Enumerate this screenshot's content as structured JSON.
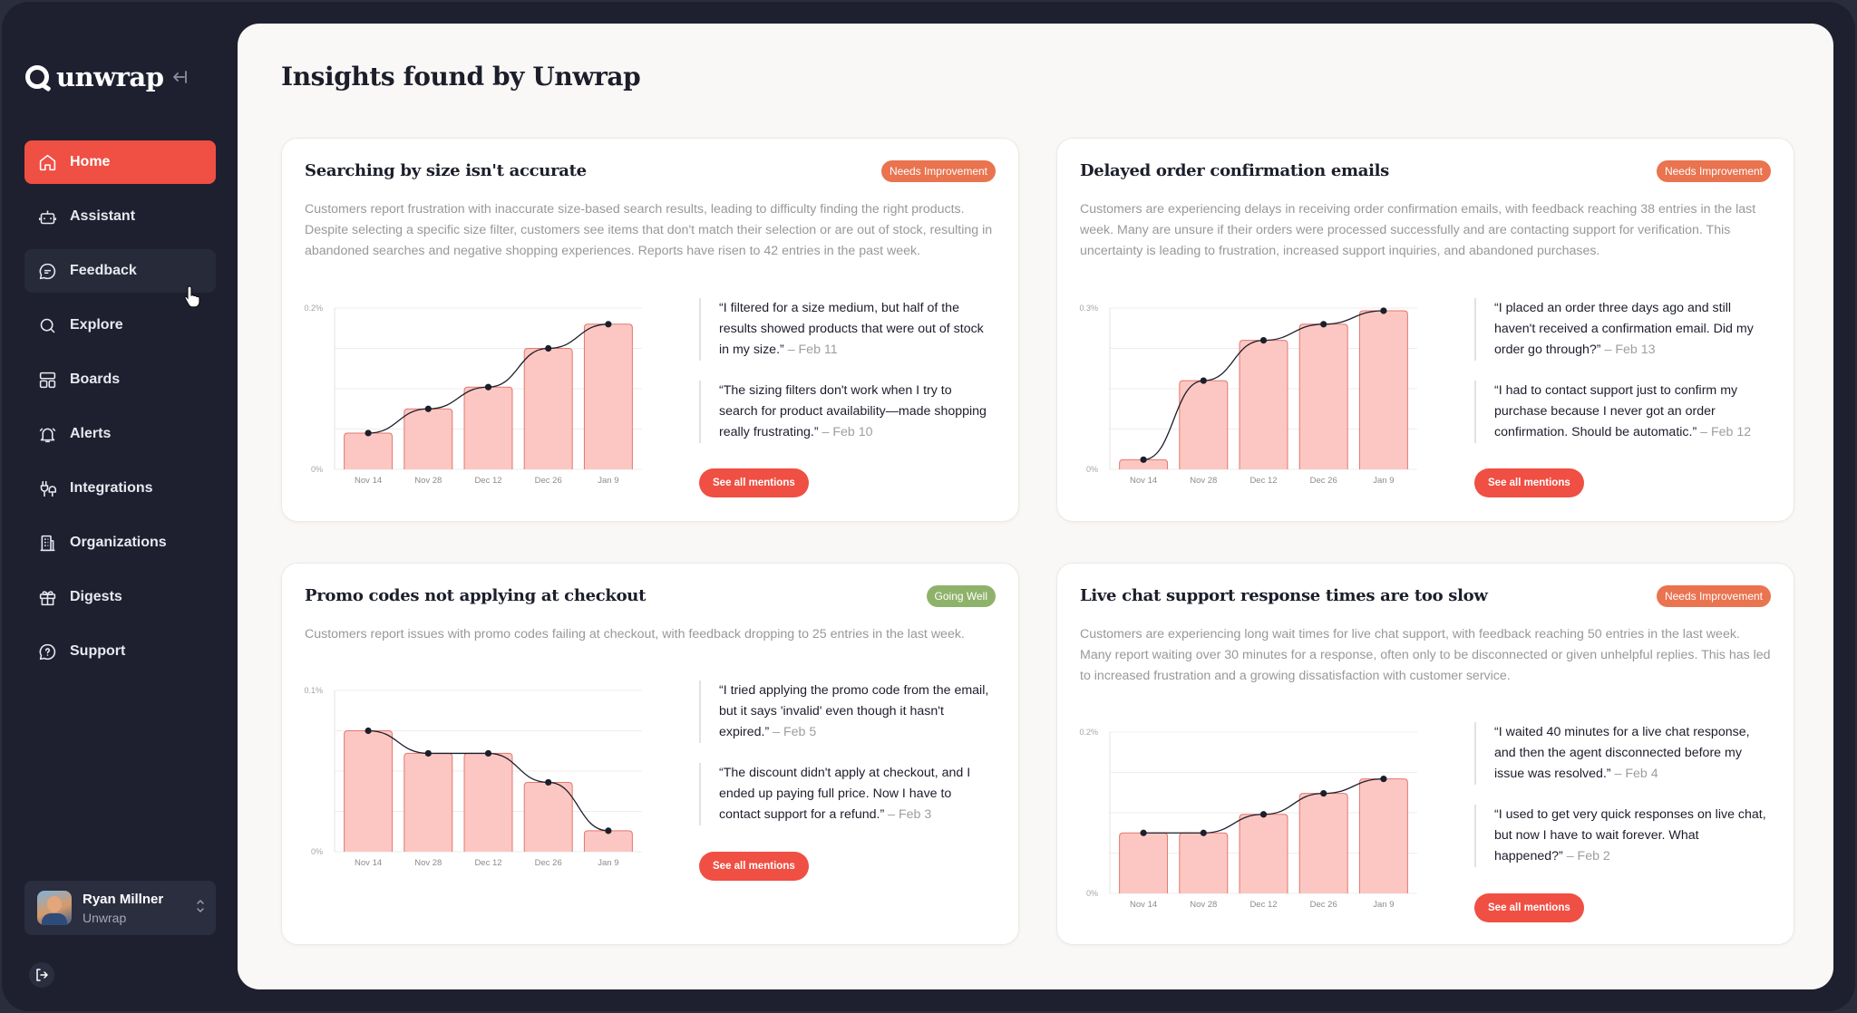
{
  "app": {
    "name": "unwrap"
  },
  "sidebar": {
    "items": [
      {
        "label": "Home",
        "icon": "home-icon",
        "active": true
      },
      {
        "label": "Assistant",
        "icon": "robot-icon"
      },
      {
        "label": "Feedback",
        "icon": "chat-bubble-icon",
        "hover": true
      },
      {
        "label": "Explore",
        "icon": "search-icon"
      },
      {
        "label": "Boards",
        "icon": "boards-icon"
      },
      {
        "label": "Alerts",
        "icon": "bell-icon"
      },
      {
        "label": "Integrations",
        "icon": "integrations-icon"
      },
      {
        "label": "Organizations",
        "icon": "building-icon"
      },
      {
        "label": "Digests",
        "icon": "gift-icon"
      },
      {
        "label": "Support",
        "icon": "support-icon"
      }
    ],
    "user": {
      "name": "Ryan Millner",
      "org": "Unwrap"
    }
  },
  "main": {
    "title": "Insights found by Unwrap"
  },
  "colors": {
    "accent": "#f04f43",
    "needs_improvement": "#e9744f",
    "going_well": "#8fb26b",
    "bar_fill": "#fcc7c2",
    "bar_stroke": "#e1786e",
    "sidebar_bg": "#1e2030"
  },
  "cards": [
    {
      "title": "Searching by size isn't accurate",
      "badge": "Needs Improvement",
      "badge_type": "needs",
      "description": "Customers report frustration with inaccurate size-based search results, leading to difficulty finding the right products. Despite selecting a specific size filter, customers see items that don't match their selection or are out of stock, resulting in abandoned searches and negative shopping experiences. Reports have risen to 42 entries in the past week.",
      "quotes": [
        {
          "text": "“I filtered for a size medium, but half of the results showed products that were out of stock in my size.”",
          "date": "– Feb 11"
        },
        {
          "text": "“The sizing filters don't work when I try to search for product availability—made shopping really frustrating.”",
          "date": "– Feb 10"
        }
      ],
      "button": "See all mentions"
    },
    {
      "title": "Delayed order confirmation emails",
      "badge": "Needs Improvement",
      "badge_type": "needs",
      "description": "Customers are experiencing delays in receiving order confirmation emails, with feedback reaching 38 entries in the last week. Many are unsure if their orders were processed successfully and are contacting support for verification. This uncertainty is leading to frustration, increased support inquiries, and abandoned purchases.",
      "quotes": [
        {
          "text": "“I placed an order three days ago and still haven't received a confirmation email. Did my order go through?”",
          "date": "– Feb 13"
        },
        {
          "text": "“I had to contact support just to confirm my purchase because I never got an order confirmation. Should be automatic.”",
          "date": "– Feb 12"
        }
      ],
      "button": "See all mentions"
    },
    {
      "title": "Promo codes not applying at checkout",
      "badge": "Going Well",
      "badge_type": "good",
      "description": "Customers report issues with promo codes failing at checkout, with feedback dropping to 25 entries in the last week.",
      "quotes": [
        {
          "text": "“I tried applying the promo code from the email, but it says 'invalid' even though it hasn't expired.”",
          "date": "– Feb 5"
        },
        {
          "text": "“The discount didn't apply at checkout, and I ended up paying full price. Now I have to contact support for a refund.”",
          "date": "– Feb 3"
        }
      ],
      "button": "See all mentions"
    },
    {
      "title": "Live chat support response times are too slow",
      "badge": "Needs Improvement",
      "badge_type": "needs",
      "description": "Customers are experiencing long wait times for live chat support, with feedback reaching 50 entries in the last week. Many report waiting over 30 minutes for a response, often only to be disconnected or given unhelpful replies. This has led to increased frustration and a growing dissatisfaction with customer service.",
      "quotes": [
        {
          "text": "“I waited 40 minutes for a live chat response, and then the agent disconnected before my issue was resolved.”",
          "date": "– Feb 4"
        },
        {
          "text": "“I used to get very quick responses on live chat, but now I have to wait forever. What happened?”",
          "date": "– Feb 2"
        }
      ],
      "button": "See all mentions"
    }
  ],
  "chart_data": [
    {
      "type": "bar",
      "categories": [
        "Nov 14",
        "Nov 28",
        "Dec 12",
        "Dec 26",
        "Jan 9"
      ],
      "values": [
        0.045,
        0.075,
        0.102,
        0.15,
        0.18
      ],
      "ylim": [
        0,
        0.2
      ],
      "yticks": [
        "0%",
        "0.2%"
      ],
      "line_overlay": true
    },
    {
      "type": "bar",
      "categories": [
        "Nov 14",
        "Nov 28",
        "Dec 12",
        "Dec 26",
        "Jan 9"
      ],
      "values": [
        0.018,
        0.165,
        0.24,
        0.27,
        0.295
      ],
      "ylim": [
        0,
        0.3
      ],
      "yticks": [
        "0%",
        "0.3%"
      ],
      "line_overlay": true
    },
    {
      "type": "bar",
      "categories": [
        "Nov 14",
        "Nov 28",
        "Dec 12",
        "Dec 26",
        "Jan 9"
      ],
      "values": [
        0.075,
        0.061,
        0.061,
        0.043,
        0.013
      ],
      "ylim": [
        0,
        0.1
      ],
      "yticks": [
        "0%",
        "0.1%"
      ],
      "line_overlay": true
    },
    {
      "type": "bar",
      "categories": [
        "Nov 14",
        "Nov 28",
        "Dec 12",
        "Dec 26",
        "Jan 9"
      ],
      "values": [
        0.075,
        0.075,
        0.098,
        0.124,
        0.142
      ],
      "ylim": [
        0,
        0.2
      ],
      "yticks": [
        "0%",
        "0.2%"
      ],
      "line_overlay": true
    }
  ]
}
